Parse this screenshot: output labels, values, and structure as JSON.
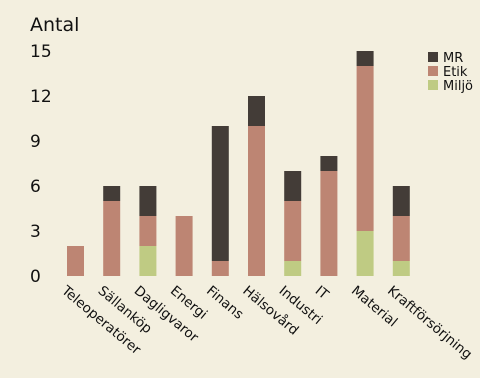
{
  "colors": {
    "background": "#f3efdf",
    "MR": "#433c37",
    "Etik": "#bd8573",
    "Miljö": "#bfcb83"
  },
  "chart_data": {
    "type": "bar",
    "stacked": true,
    "title": "",
    "xlabel": "",
    "ylabel": "Antal",
    "ylim": [
      0,
      15
    ],
    "yticks": [
      "0",
      "3",
      "6",
      "9",
      "12",
      "15"
    ],
    "grid": false,
    "legend_position": "right",
    "categories": [
      "Teleoperatörer",
      "Sällanköp",
      "Dagligvaror",
      "Energi",
      "Finans",
      "Hälsovård",
      "Industri",
      "IT",
      "Material",
      "Kraftförsörjning"
    ],
    "series": [
      {
        "name": "Miljö",
        "color": "#bfcb83",
        "values": [
          0,
          0,
          2,
          0,
          0,
          0,
          1,
          0,
          3,
          1
        ]
      },
      {
        "name": "Etik",
        "color": "#bd8573",
        "values": [
          2,
          5,
          2,
          4,
          1,
          10,
          4,
          7,
          11,
          3
        ]
      },
      {
        "name": "MR",
        "color": "#433c37",
        "values": [
          0,
          1,
          2,
          0,
          9,
          2,
          2,
          1,
          1,
          2
        ]
      }
    ],
    "legend_order": [
      "MR",
      "Etik",
      "Miljö"
    ]
  }
}
